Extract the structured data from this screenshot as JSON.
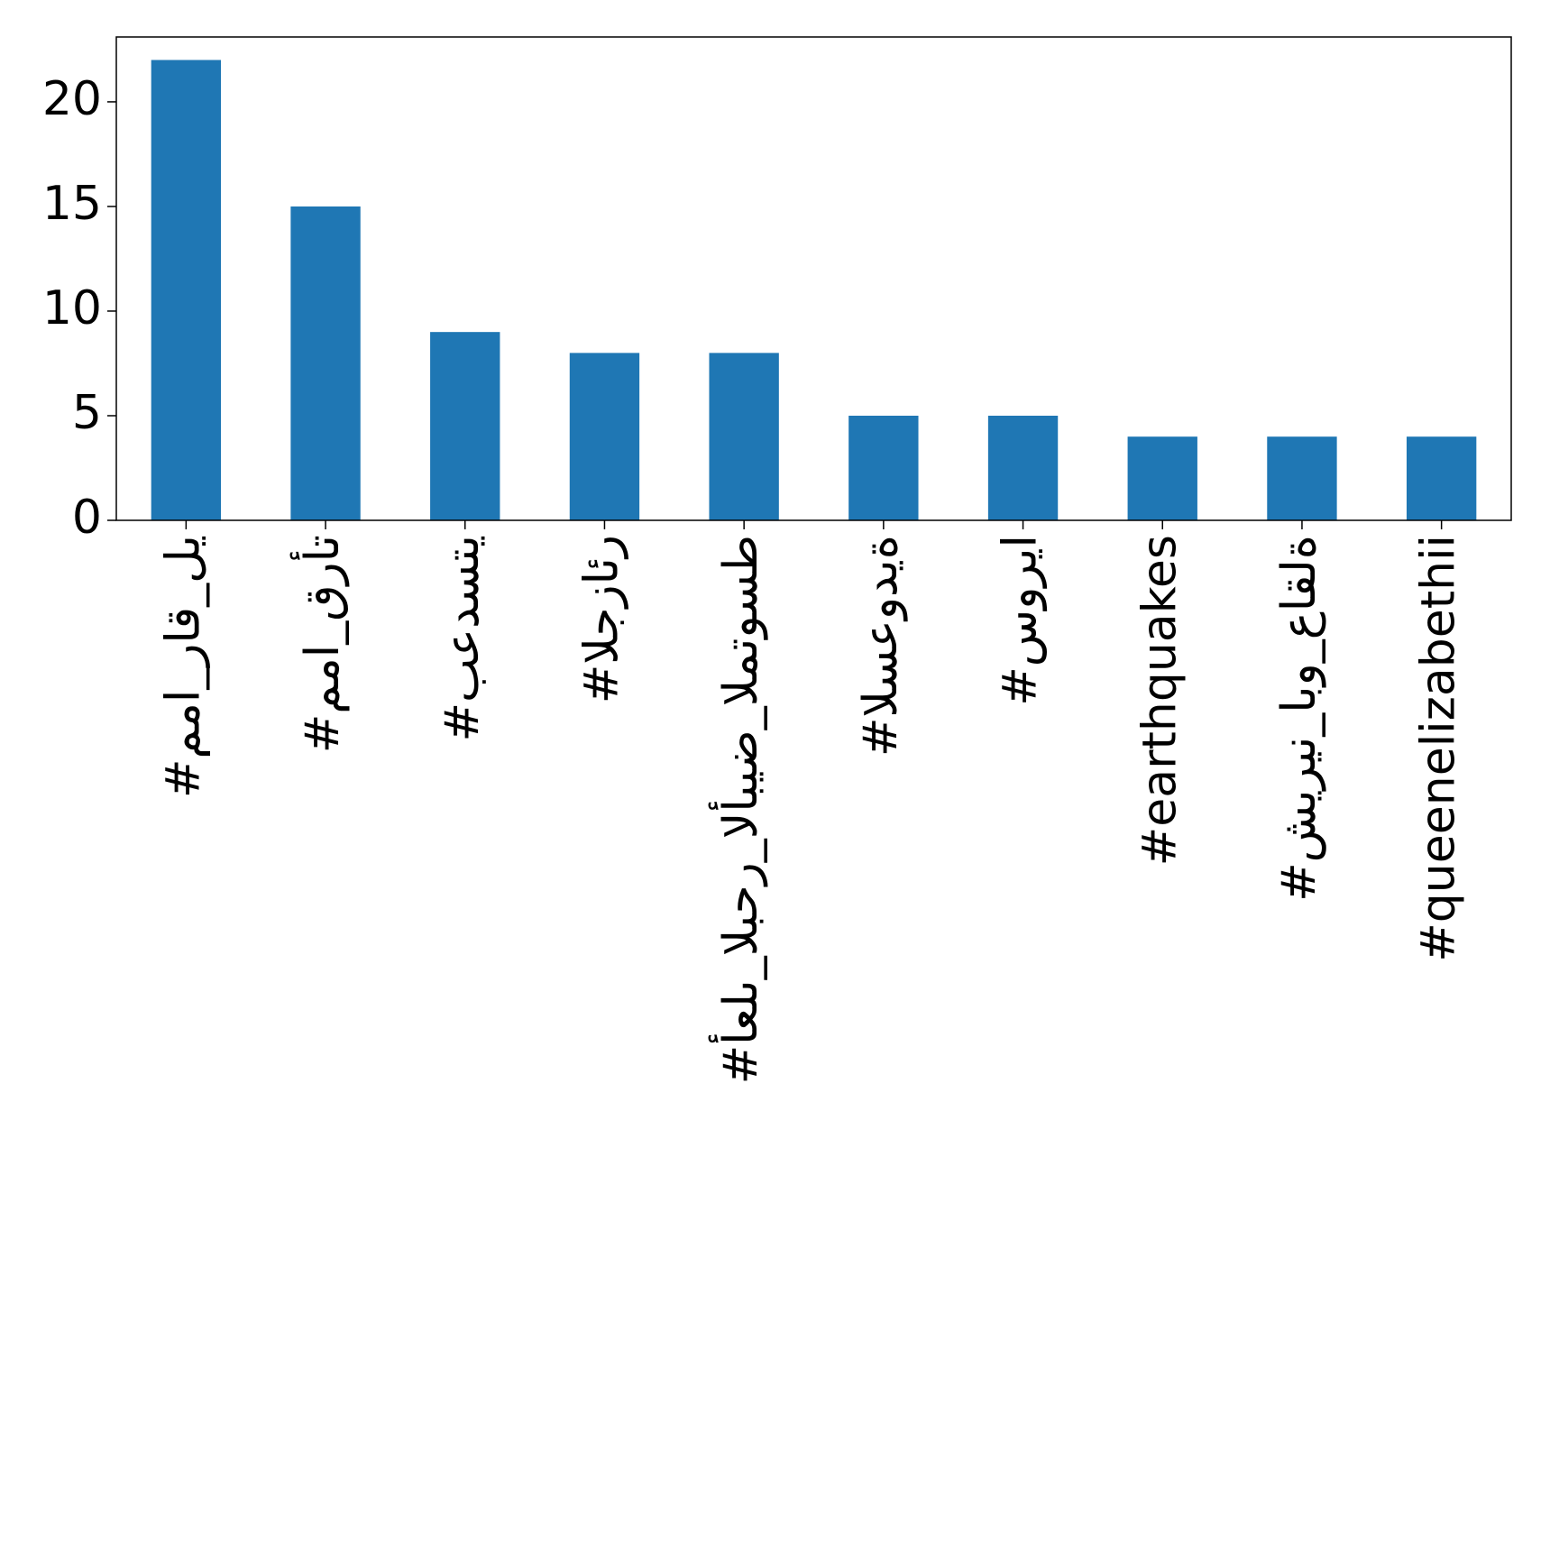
{
  "chart_data": {
    "type": "bar",
    "categories": [
      "#مما_راق_لي",
      "#مما_قرأت",
      "#بعدستي",
      "#الجزائر",
      "#أعلى_البحر_الأبيض_المتوسط",
      "#السعودية",
      "#سوريا",
      "#earthquakes",
      "#شيرين_ابو_عاقلة",
      "#queenelizabethii"
    ],
    "values": [
      22,
      15,
      9,
      8,
      8,
      5,
      5,
      4,
      4,
      4
    ],
    "color": "#1f77b4",
    "ylim": [
      0,
      23.1
    ],
    "yticks": [
      0,
      5,
      10,
      15,
      20
    ],
    "grid": false
  }
}
